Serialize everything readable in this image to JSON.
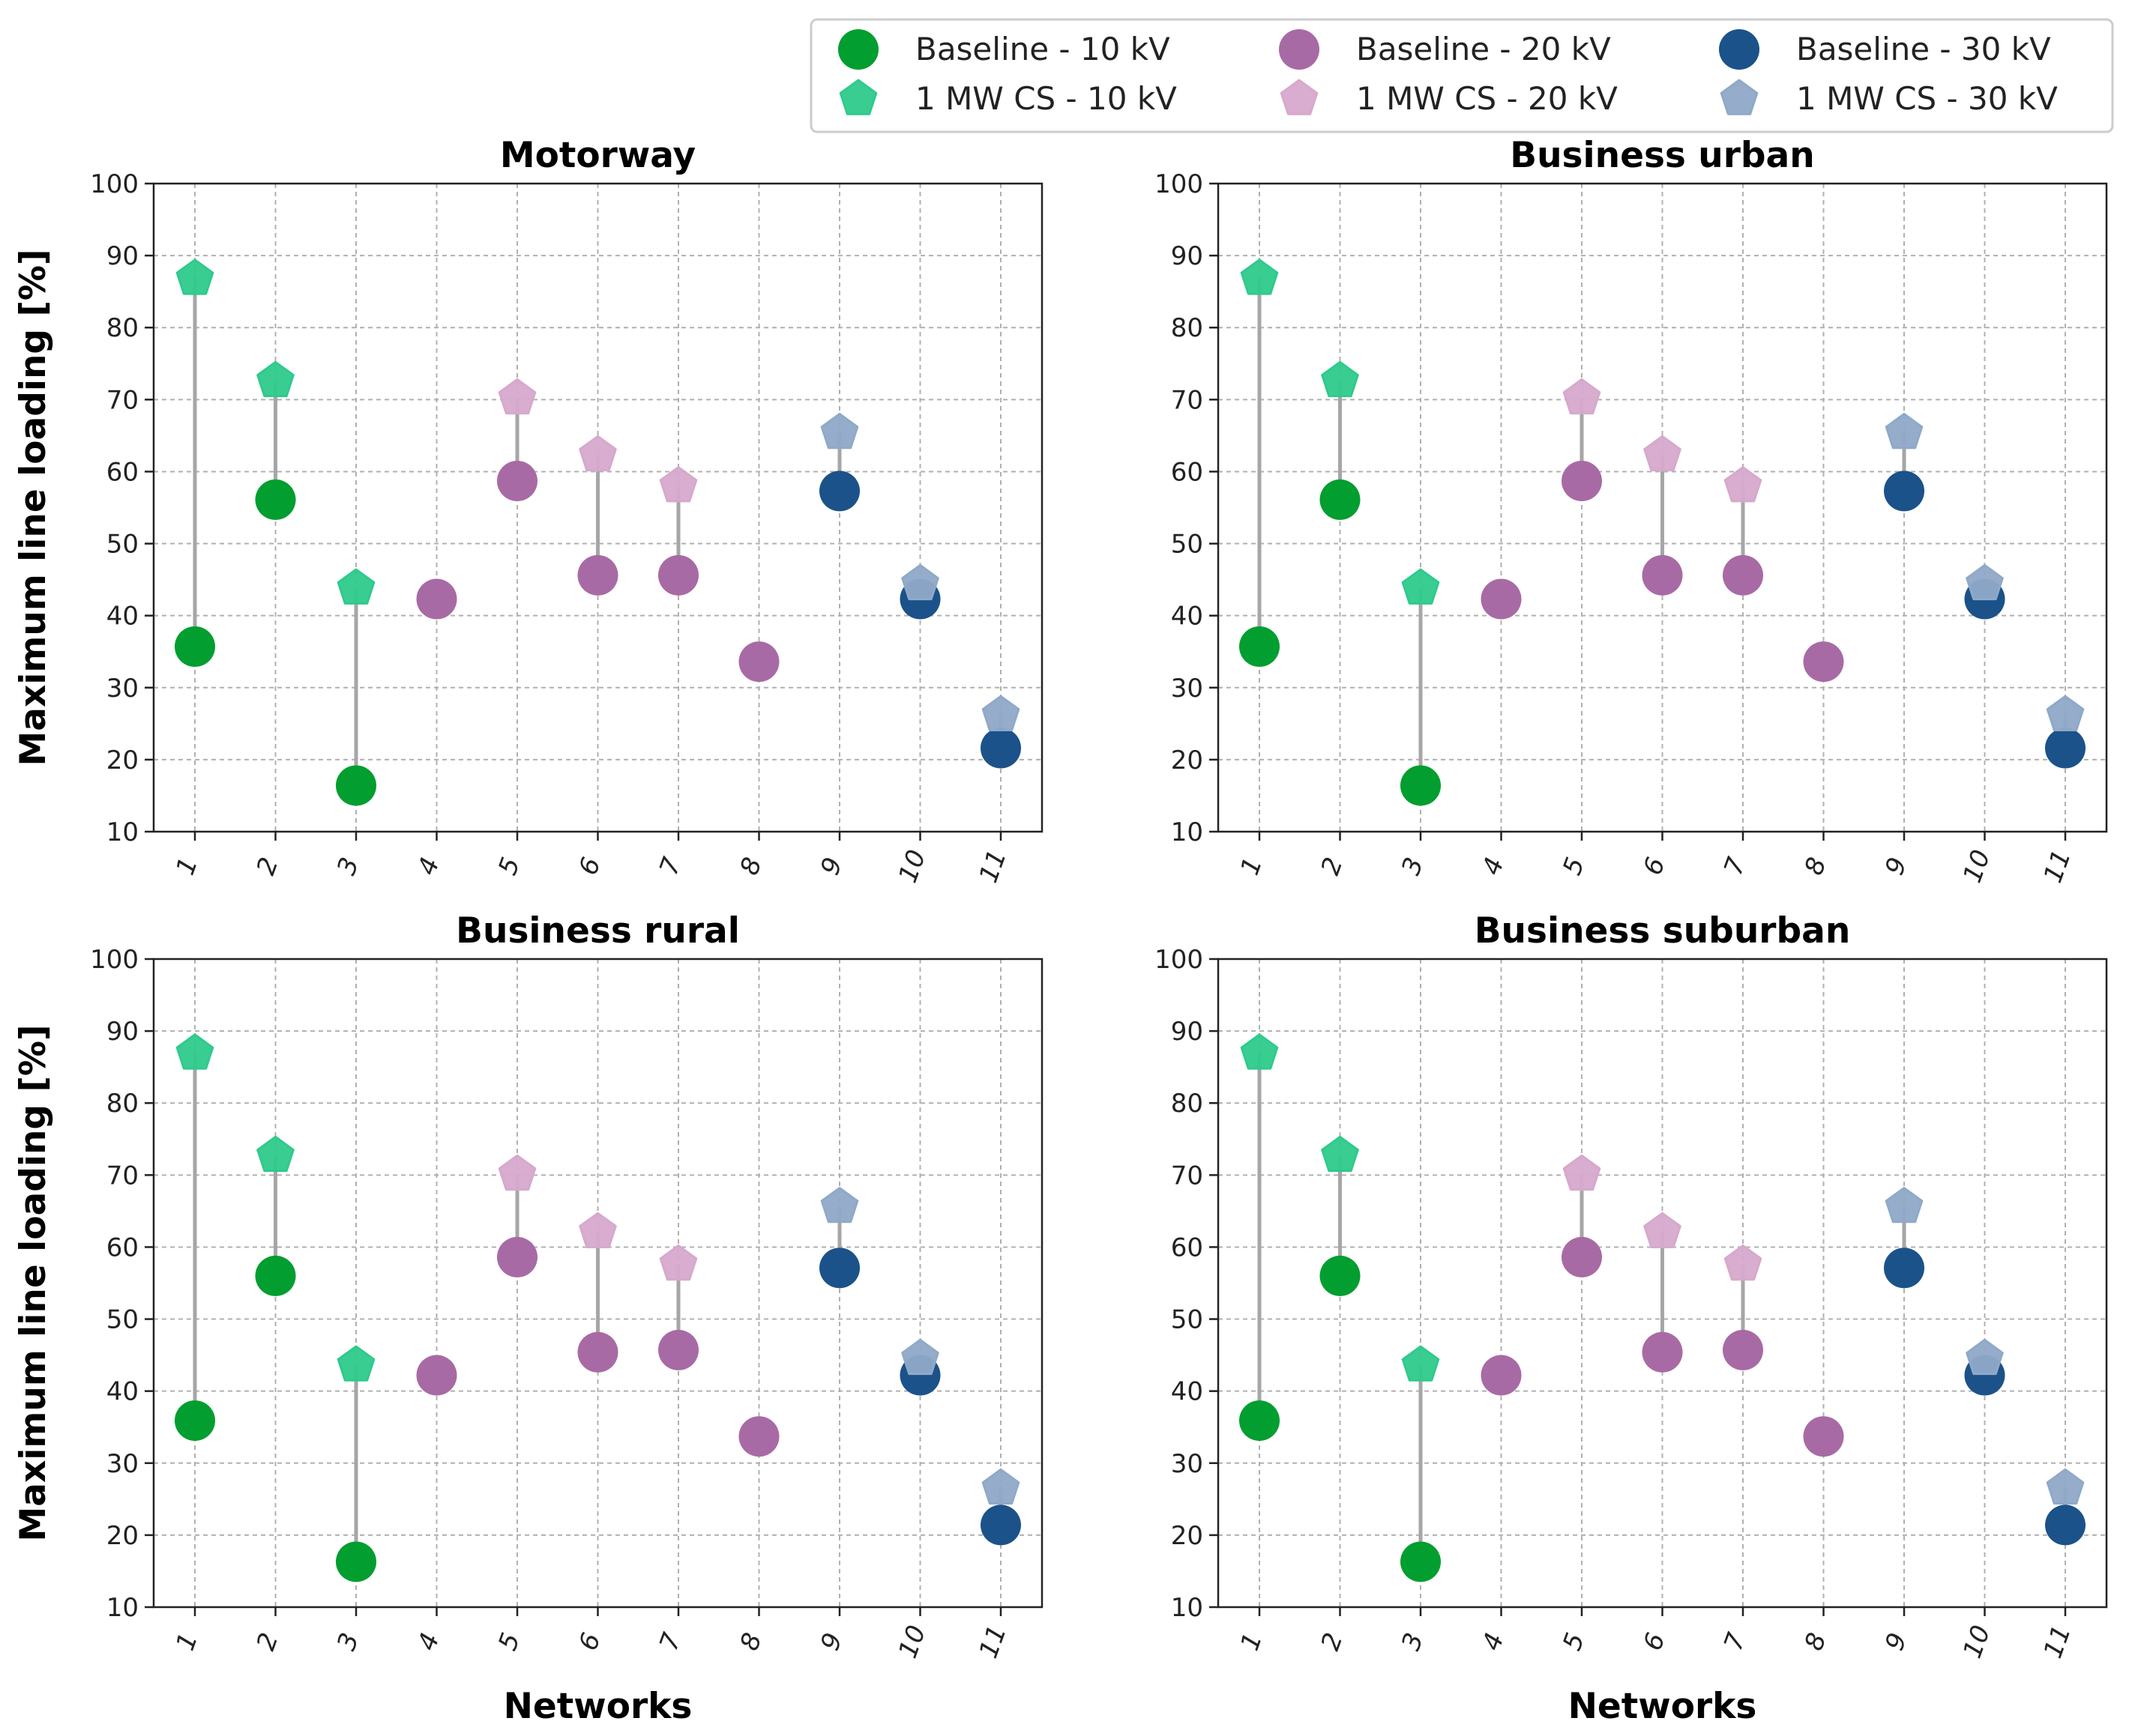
{
  "chart_data": {
    "type": "scatter",
    "legend_position": "top-right",
    "xlabel": "Networks",
    "ylabel": "Maximum line loading [%]",
    "ylim": [
      10,
      100
    ],
    "yticks": [
      10,
      20,
      30,
      40,
      50,
      60,
      70,
      80,
      90,
      100
    ],
    "categories": [
      "1",
      "2",
      "3",
      "4",
      "5",
      "6",
      "7",
      "8",
      "9",
      "10",
      "11"
    ],
    "grid": true,
    "series_styles": [
      {
        "name": "Baseline - 10 kV",
        "marker": "circle",
        "color": "#029e2f"
      },
      {
        "name": "1 MW CS - 10 kV",
        "marker": "pentagon",
        "color": "#2fca8c"
      },
      {
        "name": "Baseline - 20 kV",
        "marker": "circle",
        "color": "#a86aa4"
      },
      {
        "name": "1 MW CS - 20 kV",
        "marker": "pentagon",
        "color": "#d6a9cc"
      },
      {
        "name": "Baseline - 30 kV",
        "marker": "circle",
        "color": "#1b5289"
      },
      {
        "name": "1 MW CS - 30 kV",
        "marker": "pentagon",
        "color": "#8fa9c8"
      }
    ],
    "panels": [
      {
        "title": "Motorway",
        "points": [
          {
            "network": "1",
            "voltage": "10 kV",
            "baseline": 35.7,
            "cs": 86.8
          },
          {
            "network": "2",
            "voltage": "10 kV",
            "baseline": 56.1,
            "cs": 72.6
          },
          {
            "network": "3",
            "voltage": "10 kV",
            "baseline": 16.4,
            "cs": 43.8
          },
          {
            "network": "4",
            "voltage": "20 kV",
            "baseline": 42.3,
            "cs": null
          },
          {
            "network": "5",
            "voltage": "20 kV",
            "baseline": 58.7,
            "cs": 70.2
          },
          {
            "network": "6",
            "voltage": "20 kV",
            "baseline": 45.6,
            "cs": 62.3
          },
          {
            "network": "7",
            "voltage": "20 kV",
            "baseline": 45.6,
            "cs": 58.0
          },
          {
            "network": "8",
            "voltage": "20 kV",
            "baseline": 33.6,
            "cs": null
          },
          {
            "network": "9",
            "voltage": "30 kV",
            "baseline": 57.3,
            "cs": 65.4
          },
          {
            "network": "10",
            "voltage": "30 kV",
            "baseline": 42.3,
            "cs": 44.4
          },
          {
            "network": "11",
            "voltage": "30 kV",
            "baseline": 21.6,
            "cs": 26.2
          }
        ]
      },
      {
        "title": "Business urban",
        "points": [
          {
            "network": "1",
            "voltage": "10 kV",
            "baseline": 35.7,
            "cs": 86.8
          },
          {
            "network": "2",
            "voltage": "10 kV",
            "baseline": 56.1,
            "cs": 72.6
          },
          {
            "network": "3",
            "voltage": "10 kV",
            "baseline": 16.4,
            "cs": 43.8
          },
          {
            "network": "4",
            "voltage": "20 kV",
            "baseline": 42.3,
            "cs": null
          },
          {
            "network": "5",
            "voltage": "20 kV",
            "baseline": 58.7,
            "cs": 70.2
          },
          {
            "network": "6",
            "voltage": "20 kV",
            "baseline": 45.6,
            "cs": 62.3
          },
          {
            "network": "7",
            "voltage": "20 kV",
            "baseline": 45.6,
            "cs": 58.0
          },
          {
            "network": "8",
            "voltage": "20 kV",
            "baseline": 33.6,
            "cs": null
          },
          {
            "network": "9",
            "voltage": "30 kV",
            "baseline": 57.3,
            "cs": 65.4
          },
          {
            "network": "10",
            "voltage": "30 kV",
            "baseline": 42.3,
            "cs": 44.4
          },
          {
            "network": "11",
            "voltage": "30 kV",
            "baseline": 21.6,
            "cs": 26.2
          }
        ]
      },
      {
        "title": "Business rural",
        "points": [
          {
            "network": "1",
            "voltage": "10 kV",
            "baseline": 35.9,
            "cs": 86.9
          },
          {
            "network": "2",
            "voltage": "10 kV",
            "baseline": 56.0,
            "cs": 72.7
          },
          {
            "network": "3",
            "voltage": "10 kV",
            "baseline": 16.3,
            "cs": 43.6
          },
          {
            "network": "4",
            "voltage": "20 kV",
            "baseline": 42.2,
            "cs": null
          },
          {
            "network": "5",
            "voltage": "20 kV",
            "baseline": 58.6,
            "cs": 70.1
          },
          {
            "network": "6",
            "voltage": "20 kV",
            "baseline": 45.4,
            "cs": 62.1
          },
          {
            "network": "7",
            "voltage": "20 kV",
            "baseline": 45.7,
            "cs": 57.6
          },
          {
            "network": "8",
            "voltage": "20 kV",
            "baseline": 33.7,
            "cs": null
          },
          {
            "network": "9",
            "voltage": "30 kV",
            "baseline": 57.1,
            "cs": 65.6
          },
          {
            "network": "10",
            "voltage": "30 kV",
            "baseline": 42.2,
            "cs": 44.5
          },
          {
            "network": "11",
            "voltage": "30 kV",
            "baseline": 21.4,
            "cs": 26.5
          }
        ]
      },
      {
        "title": "Business suburban",
        "points": [
          {
            "network": "1",
            "voltage": "10 kV",
            "baseline": 35.9,
            "cs": 86.9
          },
          {
            "network": "2",
            "voltage": "10 kV",
            "baseline": 56.0,
            "cs": 72.7
          },
          {
            "network": "3",
            "voltage": "10 kV",
            "baseline": 16.3,
            "cs": 43.6
          },
          {
            "network": "4",
            "voltage": "20 kV",
            "baseline": 42.2,
            "cs": null
          },
          {
            "network": "5",
            "voltage": "20 kV",
            "baseline": 58.6,
            "cs": 70.1
          },
          {
            "network": "6",
            "voltage": "20 kV",
            "baseline": 45.4,
            "cs": 62.1
          },
          {
            "network": "7",
            "voltage": "20 kV",
            "baseline": 45.7,
            "cs": 57.6
          },
          {
            "network": "8",
            "voltage": "20 kV",
            "baseline": 33.7,
            "cs": null
          },
          {
            "network": "9",
            "voltage": "30 kV",
            "baseline": 57.1,
            "cs": 65.6
          },
          {
            "network": "10",
            "voltage": "30 kV",
            "baseline": 42.2,
            "cs": 44.5
          },
          {
            "network": "11",
            "voltage": "30 kV",
            "baseline": 21.4,
            "cs": 26.5
          }
        ]
      }
    ]
  }
}
